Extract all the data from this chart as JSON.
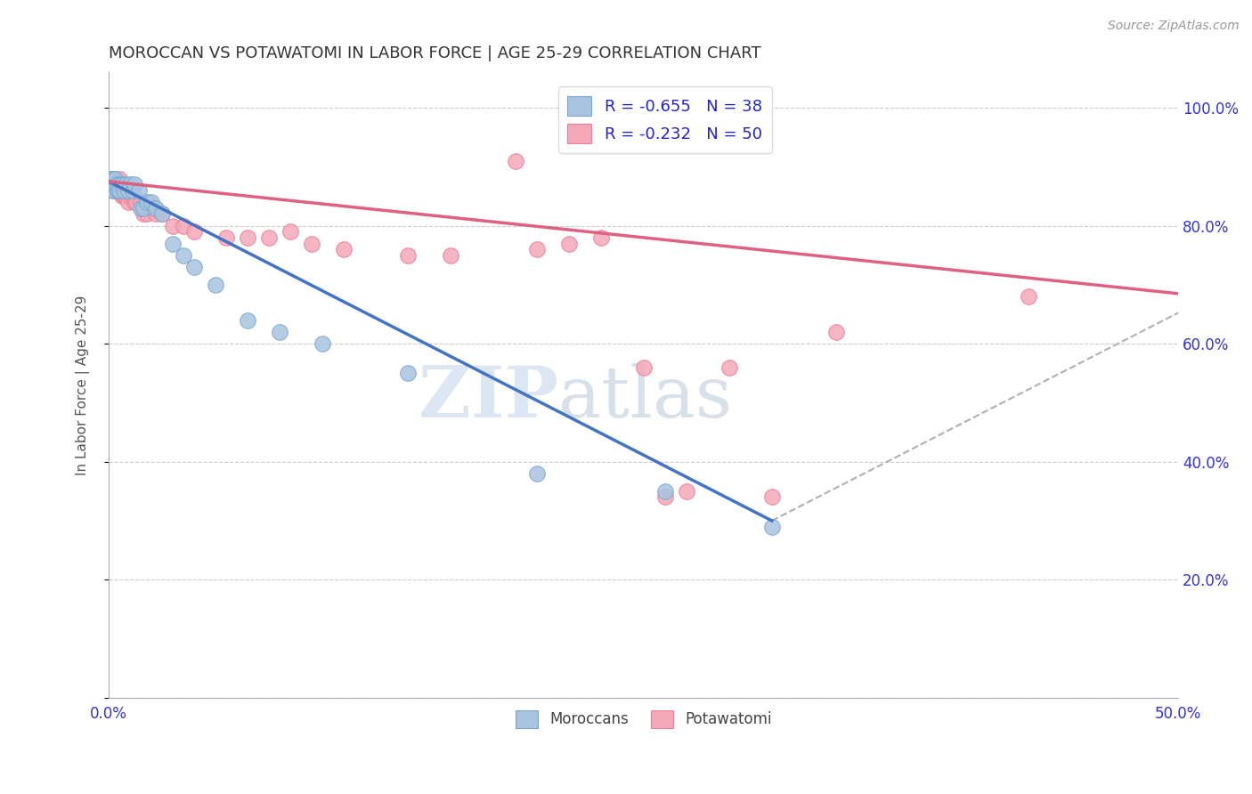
{
  "title": "MOROCCAN VS POTAWATOMI IN LABOR FORCE | AGE 25-29 CORRELATION CHART",
  "source": "Source: ZipAtlas.com",
  "ylabel": "In Labor Force | Age 25-29",
  "xlim": [
    0.0,
    0.5
  ],
  "ylim": [
    0.0,
    1.06
  ],
  "x_ticks": [
    0.0,
    0.1,
    0.2,
    0.3,
    0.4,
    0.5
  ],
  "x_tick_labels": [
    "0.0%",
    "",
    "",
    "",
    "",
    "50.0%"
  ],
  "y_ticks": [
    0.0,
    0.2,
    0.4,
    0.6,
    0.8,
    1.0
  ],
  "y_tick_labels_right": [
    "",
    "20.0%",
    "40.0%",
    "60.0%",
    "80.0%",
    "100.0%"
  ],
  "legend_r_moroccan": "-0.655",
  "legend_n_moroccan": "38",
  "legend_r_potawatomi": "-0.232",
  "legend_n_potawatomi": "50",
  "moroccan_color": "#a8c4e0",
  "potawatomi_color": "#f4a8b8",
  "moroccan_edge": "#7ba7cc",
  "potawatomi_edge": "#e8809a",
  "trendline_moroccan": "#4472c4",
  "trendline_potawatomi": "#e06080",
  "trendline_dashed": "#b0b0b0",
  "watermark_zip": "ZIP",
  "watermark_atlas": "atlas",
  "moroccan_x": [
    0.001,
    0.001,
    0.001,
    0.002,
    0.002,
    0.002,
    0.003,
    0.003,
    0.004,
    0.004,
    0.005,
    0.005,
    0.006,
    0.006,
    0.007,
    0.008,
    0.009,
    0.01,
    0.011,
    0.012,
    0.014,
    0.015,
    0.016,
    0.018,
    0.02,
    0.022,
    0.025,
    0.03,
    0.035,
    0.04,
    0.05,
    0.065,
    0.08,
    0.1,
    0.14,
    0.2,
    0.26,
    0.31
  ],
  "moroccan_y": [
    0.87,
    0.87,
    0.88,
    0.86,
    0.87,
    0.88,
    0.87,
    0.88,
    0.86,
    0.87,
    0.87,
    0.86,
    0.87,
    0.87,
    0.86,
    0.87,
    0.86,
    0.87,
    0.86,
    0.87,
    0.86,
    0.83,
    0.83,
    0.84,
    0.84,
    0.83,
    0.82,
    0.77,
    0.75,
    0.73,
    0.7,
    0.64,
    0.62,
    0.6,
    0.55,
    0.38,
    0.35,
    0.29
  ],
  "potawatomi_x": [
    0.001,
    0.001,
    0.002,
    0.002,
    0.003,
    0.003,
    0.003,
    0.004,
    0.004,
    0.005,
    0.005,
    0.005,
    0.006,
    0.006,
    0.007,
    0.007,
    0.008,
    0.009,
    0.01,
    0.011,
    0.012,
    0.013,
    0.015,
    0.016,
    0.018,
    0.02,
    0.022,
    0.025,
    0.03,
    0.035,
    0.04,
    0.055,
    0.065,
    0.075,
    0.085,
    0.095,
    0.11,
    0.14,
    0.16,
    0.19,
    0.2,
    0.215,
    0.23,
    0.25,
    0.26,
    0.27,
    0.29,
    0.31,
    0.34,
    0.43
  ],
  "potawatomi_y": [
    0.87,
    0.88,
    0.86,
    0.87,
    0.86,
    0.87,
    0.88,
    0.86,
    0.87,
    0.86,
    0.87,
    0.88,
    0.85,
    0.86,
    0.85,
    0.86,
    0.85,
    0.84,
    0.85,
    0.85,
    0.84,
    0.84,
    0.84,
    0.82,
    0.82,
    0.83,
    0.82,
    0.82,
    0.8,
    0.8,
    0.79,
    0.78,
    0.78,
    0.78,
    0.79,
    0.77,
    0.76,
    0.75,
    0.75,
    0.91,
    0.76,
    0.77,
    0.78,
    0.56,
    0.34,
    0.35,
    0.56,
    0.34,
    0.62,
    0.68
  ],
  "mor_trend_x0": 0.0,
  "mor_trend_y0": 0.875,
  "mor_trend_x1": 0.31,
  "mor_trend_y1": 0.3,
  "pot_trend_x0": 0.0,
  "pot_trend_y0": 0.875,
  "pot_trend_x1": 0.5,
  "pot_trend_y1": 0.685
}
